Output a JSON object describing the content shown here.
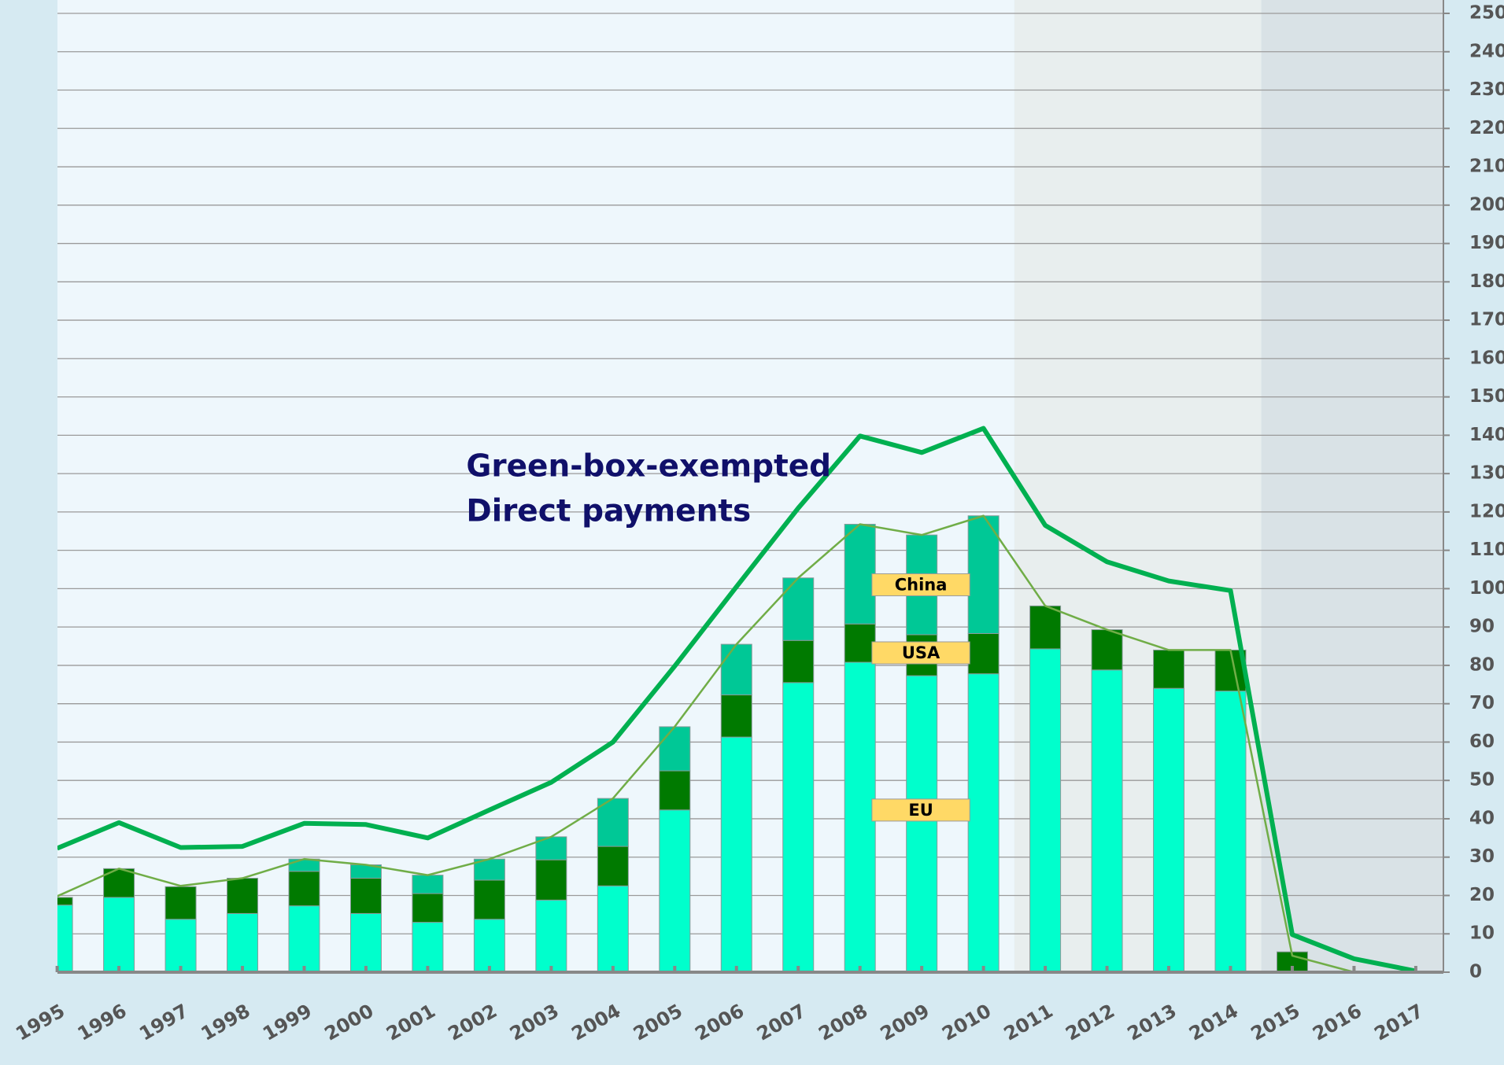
{
  "chart_data": {
    "type": "bar",
    "annotation": [
      "Green-box-exempted",
      "Direct payments"
    ],
    "categories": [
      "1995",
      "1996",
      "1997",
      "1998",
      "1999",
      "2000",
      "2001",
      "2002",
      "2003",
      "2004",
      "2005",
      "2006",
      "2007",
      "2008",
      "2009",
      "2010",
      "2011",
      "2012",
      "2013",
      "2014",
      "2015",
      "2016",
      "2017"
    ],
    "series": [
      {
        "name": "EU",
        "color": "#00ffcc",
        "values": [
          17.5,
          19.5,
          13.8,
          15.3,
          17.3,
          15.3,
          13,
          13.8,
          18.8,
          22.5,
          42.3,
          61.3,
          75.5,
          80.8,
          77.3,
          77.8,
          84.3,
          78.8,
          74,
          73.3,
          0,
          0,
          0
        ]
      },
      {
        "name": "USA",
        "color": "#007a00",
        "values": [
          2,
          7.5,
          8.5,
          9.2,
          9,
          9.2,
          7.5,
          10.2,
          10.5,
          10.3,
          10.2,
          11,
          11,
          10,
          10.7,
          10.5,
          11.2,
          10.5,
          10,
          10.7,
          5.3,
          0,
          0
        ]
      },
      {
        "name": "China",
        "color": "#00c896",
        "values": [
          0,
          0,
          0,
          0,
          3.2,
          3.5,
          4.8,
          5.5,
          6,
          12.5,
          11.5,
          13.2,
          16.3,
          26,
          26,
          30.7,
          0,
          0,
          0,
          0,
          0,
          0,
          0
        ]
      },
      {
        "type": "line",
        "color": "#00b050",
        "width": 6,
        "values": [
          32.3,
          39,
          32.5,
          32.8,
          38.8,
          38.5,
          35,
          42.3,
          49.5,
          60,
          79.8,
          100.5,
          121,
          139.8,
          135.5,
          141.8,
          116.5,
          107,
          102,
          99.5,
          9.8,
          3.5,
          0.3
        ]
      },
      {
        "type": "line",
        "color": "#70ad47",
        "width": 2.5,
        "values": [
          19.8,
          27,
          22.5,
          24.5,
          29.5,
          28,
          25.3,
          29.5,
          35.3,
          45.3,
          64,
          85.5,
          102.8,
          116.8,
          114,
          119,
          95.5,
          89.3,
          84,
          84,
          4.3,
          0,
          0
        ]
      }
    ],
    "ylim": [
      0,
      250
    ],
    "yticks": [
      0,
      10,
      20,
      30,
      40,
      50,
      60,
      70,
      80,
      90,
      100,
      110,
      120,
      130,
      140,
      150,
      160,
      170,
      180,
      190,
      200,
      210,
      220,
      230,
      240,
      250
    ],
    "grid": true,
    "stacked": true
  }
}
